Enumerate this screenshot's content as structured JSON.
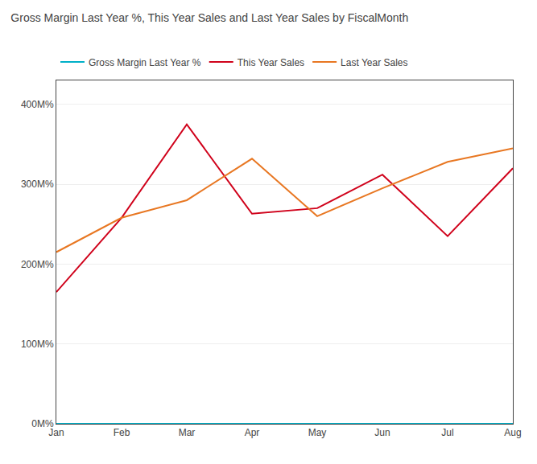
{
  "chart_data": {
    "type": "line",
    "title": "Gross Margin Last Year %, This Year Sales and Last Year Sales by FiscalMonth",
    "categories": [
      "Jan",
      "Feb",
      "Mar",
      "Apr",
      "May",
      "Jun",
      "Jul",
      "Aug"
    ],
    "series": [
      {
        "name": "Gross Margin Last Year %",
        "color": "#00b0c8",
        "values": [
          0,
          0,
          0,
          0,
          0,
          0,
          0,
          0
        ]
      },
      {
        "name": "This Year Sales",
        "color": "#d0021b",
        "values": [
          165,
          258,
          375,
          263,
          270,
          312,
          235,
          320
        ]
      },
      {
        "name": "Last Year Sales",
        "color": "#e87722",
        "values": [
          215,
          258,
          280,
          332,
          260,
          295,
          328,
          345
        ]
      }
    ],
    "ylim": [
      0,
      430
    ],
    "yticks": [
      {
        "value": 0,
        "label": "0M%"
      },
      {
        "value": 100,
        "label": "100M%"
      },
      {
        "value": 200,
        "label": "200M%"
      },
      {
        "value": 300,
        "label": "300M%"
      },
      {
        "value": 400,
        "label": "400M%"
      }
    ],
    "grid": true,
    "legend": "top"
  }
}
